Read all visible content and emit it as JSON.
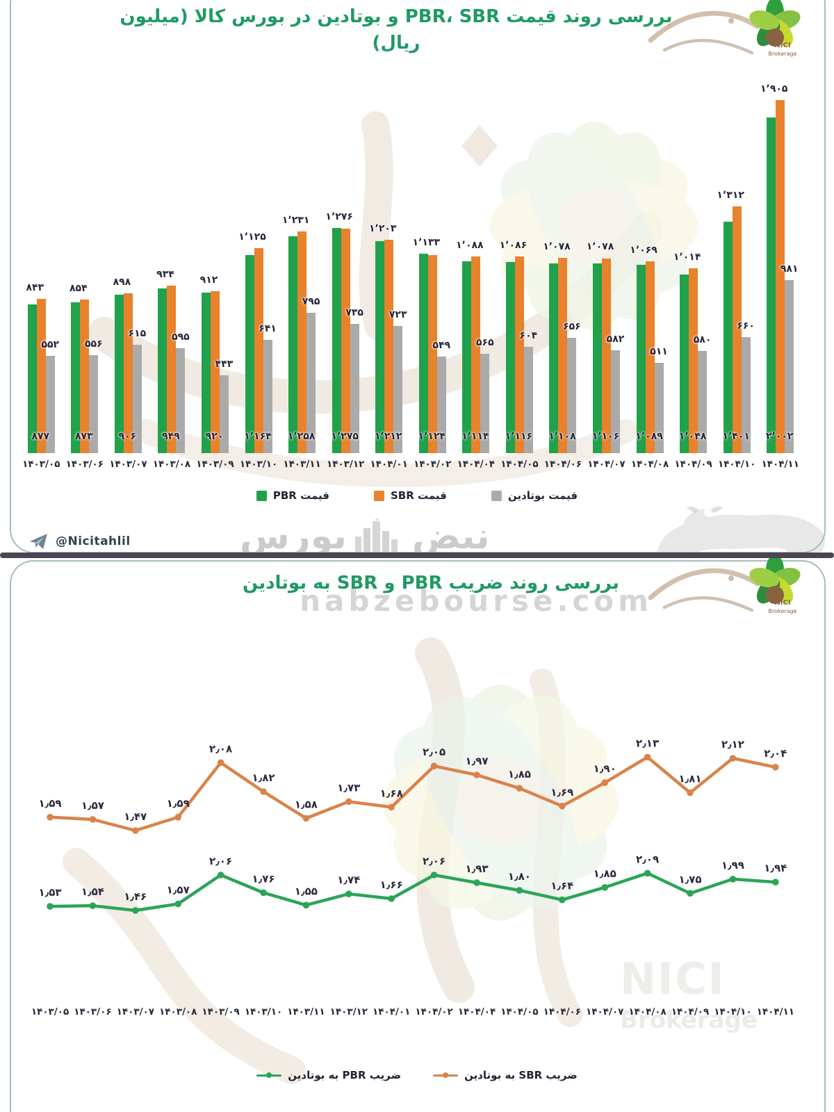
{
  "colors": {
    "pbr": "#21a14b",
    "sbr": "#e8822d",
    "butadiene": "#abaaab",
    "pbr_line": "#2ba457",
    "sbr_line": "#d8834b",
    "title": "#1f9a64",
    "label": "#29263b",
    "divider": "#4c4355",
    "border": "#a5bdbc"
  },
  "panel1": {
    "title": "بررسی روند قیمت PBR، SBR و بوتادین در بورس کالا  (میلیون ریال)",
    "legend": [
      {
        "label": "قیمت PBR",
        "color_key": "pbr"
      },
      {
        "label": "قیمت SBR",
        "color_key": "sbr"
      },
      {
        "label": "قیمت بوتادین",
        "color_key": "butadiene"
      }
    ],
    "telegram_handle": "@Nicitahlil"
  },
  "panel2": {
    "title": "بررسی روند ضریب PBR و SBR به بوتادین",
    "legend": [
      {
        "label": "ضریب PBR به بوتادین",
        "color_key": "pbr_line"
      },
      {
        "label": "ضریب SBR به بوتادین",
        "color_key": "sbr_line"
      }
    ]
  },
  "watermarks": {
    "pulse_right": "نبض",
    "pulse_left": "بورس",
    "site": "nabzebourse.com",
    "nici": "NICI",
    "brokerage": "Brokerage"
  },
  "logo": {
    "name": "NICI",
    "sub": "Brokerage"
  },
  "chart_data": [
    {
      "type": "bar",
      "title": "بررسی روند قیمت PBR، SBR و بوتادین در بورس کالا (میلیون ریال)",
      "unit": "میلیون ریال",
      "categories": [
        "1403/05",
        "1403/06",
        "1403/07",
        "1403/08",
        "1403/09",
        "1403/10",
        "1403/11",
        "1403/12",
        "1404/01",
        "1404/02",
        "1404/04",
        "1404/05",
        "1404/06",
        "1404/07",
        "1404/08",
        "1404/09",
        "1404/10",
        "1404/11"
      ],
      "series": [
        {
          "name": "قیمت PBR",
          "color_key": "pbr",
          "values": [
            843,
            854,
            898,
            934,
            912,
            1125,
            1231,
            1276,
            1203,
            1133,
            1088,
            1086,
            1078,
            1078,
            1069,
            1014,
            1312,
            1905
          ]
        },
        {
          "name": "قیمت SBR",
          "color_key": "sbr",
          "values": [
            877,
            873,
            906,
            949,
            920,
            1164,
            1258,
            1275,
            1212,
            1124,
            1114,
            1116,
            1108,
            1106,
            1089,
            1048,
            1401,
            2002
          ]
        },
        {
          "name": "قیمت بوتادین",
          "color_key": "butadiene",
          "values": [
            552,
            556,
            615,
            595,
            443,
            641,
            795,
            735,
            723,
            549,
            565,
            604,
            656,
            582,
            511,
            580,
            660,
            981
          ]
        }
      ],
      "ylim": [
        0,
        2050
      ],
      "grid": false,
      "legend_position": "bottom"
    },
    {
      "type": "line",
      "title": "بررسی روند ضریب PBR و SBR به بوتادین",
      "categories": [
        "1403/05",
        "1403/06",
        "1403/07",
        "1403/08",
        "1403/09",
        "1403/10",
        "1403/11",
        "1403/12",
        "1404/01",
        "1404/02",
        "1404/04",
        "1404/05",
        "1404/06",
        "1404/07",
        "1404/08",
        "1404/09",
        "1404/10",
        "1404/11"
      ],
      "series": [
        {
          "name": "ضریب SBR به بوتادین",
          "color_key": "sbr_line",
          "values": [
            1.59,
            1.57,
            1.47,
            1.59,
            2.08,
            1.82,
            1.58,
            1.73,
            1.68,
            2.05,
            1.97,
            1.85,
            1.69,
            1.9,
            2.13,
            1.81,
            2.12,
            2.04
          ]
        },
        {
          "name": "ضریب PBR به بوتادین",
          "color_key": "pbr_line",
          "values": [
            1.53,
            1.54,
            1.46,
            1.57,
            2.06,
            1.76,
            1.55,
            1.74,
            1.66,
            2.06,
            1.93,
            1.8,
            1.64,
            1.85,
            2.09,
            1.75,
            1.99,
            1.94
          ]
        }
      ],
      "grid": false,
      "legend_position": "bottom"
    }
  ]
}
